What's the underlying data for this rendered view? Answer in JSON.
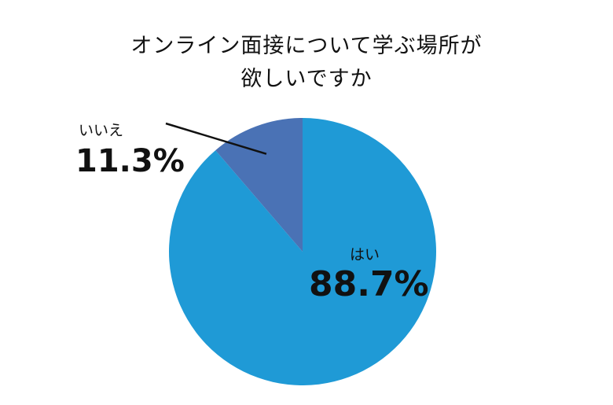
{
  "title": {
    "line1": "オンライン面接について学ぶ場所が",
    "line2": "欲しいですか"
  },
  "chart_data": {
    "type": "pie",
    "title": "オンライン面接について学ぶ場所が欲しいですか",
    "categories": [
      "はい",
      "いいえ"
    ],
    "values": [
      88.7,
      11.3
    ],
    "value_labels": [
      "88.7%",
      "11.3%"
    ],
    "colors": [
      "#1f9ad6",
      "#4a72b5"
    ],
    "legend": "none",
    "grid": false
  }
}
